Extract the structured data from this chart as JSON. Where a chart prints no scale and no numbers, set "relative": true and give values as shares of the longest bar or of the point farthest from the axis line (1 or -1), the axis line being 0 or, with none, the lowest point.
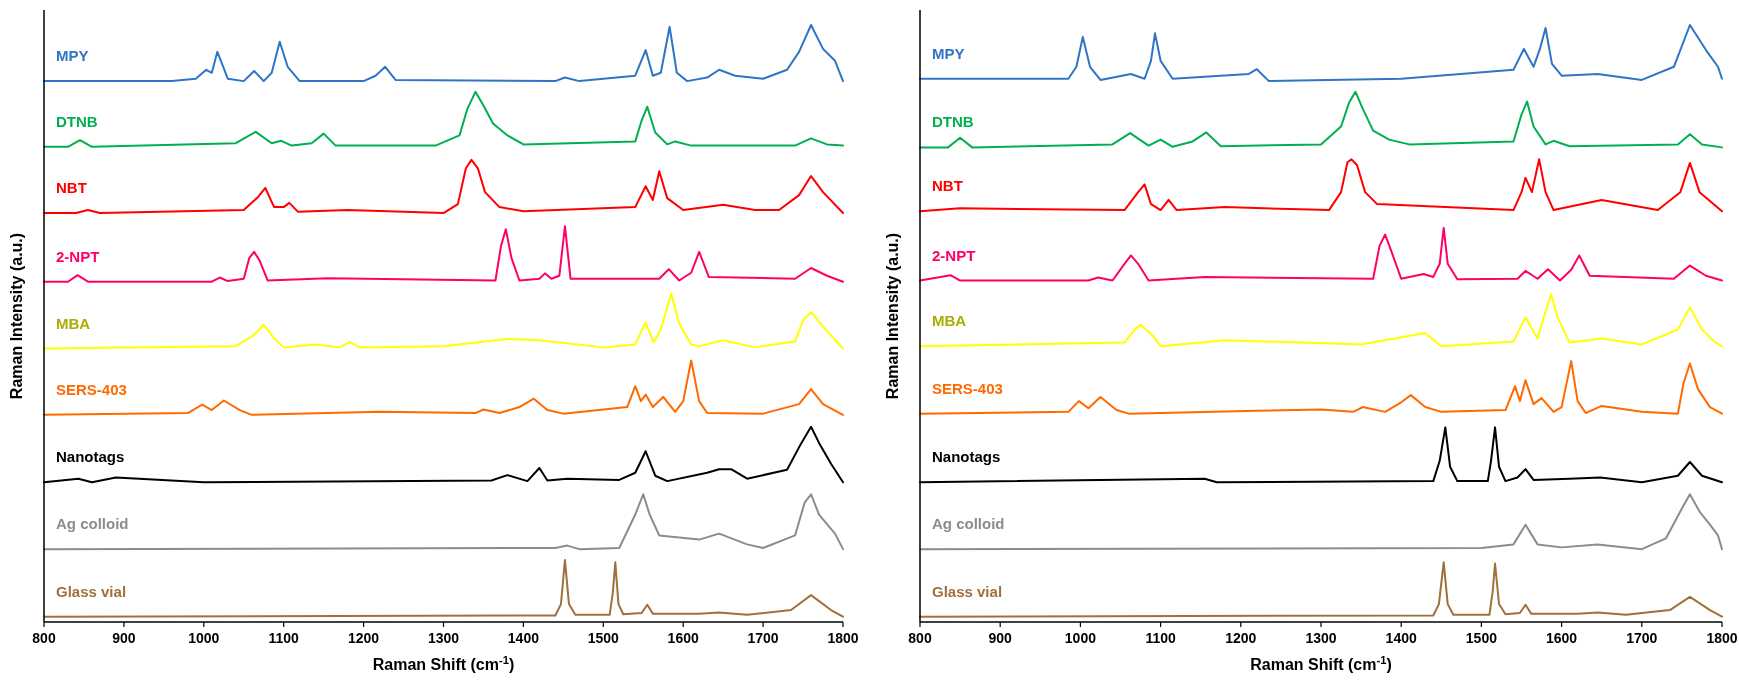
{
  "chart_data": [
    {
      "type": "line",
      "xlabel": "Raman Shift (cm$^{-1}$)",
      "ylabel": "Raman Intensity (a.u.)",
      "relative": true,
      "xlim": [
        800,
        1800
      ],
      "xticks": [
        800,
        900,
        1000,
        1100,
        1200,
        1300,
        1400,
        1500,
        1600,
        1700,
        1800
      ],
      "grid": false,
      "legend": false,
      "marker": "none",
      "line_style": "solid",
      "series": [
        {
          "name": "MPY",
          "color": "#2e75c6",
          "x": [
            800,
            960,
            990,
            1003,
            1010,
            1017,
            1030,
            1050,
            1063,
            1075,
            1085,
            1095,
            1105,
            1120,
            1200,
            1215,
            1227,
            1240,
            1440,
            1452,
            1470,
            1540,
            1553,
            1562,
            1572,
            1583,
            1592,
            1605,
            1630,
            1645,
            1665,
            1700,
            1730,
            1745,
            1760,
            1775,
            1790,
            1800
          ],
          "values": [
            0.906,
            0.906,
            0.91,
            0.925,
            0.92,
            0.955,
            0.91,
            0.906,
            0.923,
            0.906,
            0.92,
            0.972,
            0.93,
            0.906,
            0.906,
            0.915,
            0.93,
            0.908,
            0.906,
            0.912,
            0.906,
            0.915,
            0.958,
            0.915,
            0.92,
            0.997,
            0.92,
            0.906,
            0.912,
            0.925,
            0.915,
            0.91,
            0.925,
            0.955,
            1.0,
            0.96,
            0.94,
            0.906
          ]
        },
        {
          "name": "DTNB",
          "color": "#00b050",
          "x": [
            800,
            830,
            845,
            860,
            1040,
            1065,
            1085,
            1097,
            1110,
            1135,
            1150,
            1165,
            1290,
            1320,
            1330,
            1340,
            1350,
            1362,
            1380,
            1400,
            1540,
            1548,
            1555,
            1565,
            1580,
            1590,
            1610,
            1740,
            1760,
            1780,
            1800
          ],
          "values": [
            0.796,
            0.796,
            0.807,
            0.796,
            0.802,
            0.821,
            0.802,
            0.806,
            0.798,
            0.802,
            0.818,
            0.798,
            0.798,
            0.815,
            0.86,
            0.888,
            0.865,
            0.835,
            0.815,
            0.8,
            0.805,
            0.84,
            0.863,
            0.82,
            0.8,
            0.805,
            0.798,
            0.798,
            0.81,
            0.8,
            0.798
          ]
        },
        {
          "name": "NBT",
          "color": "#ff0000",
          "x": [
            800,
            840,
            855,
            870,
            1050,
            1068,
            1077,
            1088,
            1100,
            1107,
            1118,
            1180,
            1300,
            1318,
            1328,
            1335,
            1343,
            1352,
            1370,
            1400,
            1540,
            1553,
            1562,
            1570,
            1580,
            1600,
            1650,
            1690,
            1720,
            1745,
            1760,
            1775,
            1800
          ],
          "values": [
            0.685,
            0.685,
            0.69,
            0.685,
            0.69,
            0.712,
            0.727,
            0.695,
            0.695,
            0.702,
            0.687,
            0.69,
            0.685,
            0.7,
            0.76,
            0.774,
            0.76,
            0.72,
            0.695,
            0.688,
            0.695,
            0.73,
            0.707,
            0.755,
            0.71,
            0.69,
            0.699,
            0.69,
            0.69,
            0.715,
            0.747,
            0.72,
            0.685
          ]
        },
        {
          "name": "2-NPT",
          "color": "#ff0066",
          "x": [
            800,
            830,
            842,
            855,
            1010,
            1020,
            1030,
            1050,
            1057,
            1063,
            1070,
            1080,
            1155,
            1365,
            1372,
            1378,
            1385,
            1395,
            1420,
            1427,
            1435,
            1445,
            1452,
            1459,
            1570,
            1582,
            1595,
            1610,
            1620,
            1632,
            1740,
            1760,
            1780,
            1800
          ],
          "values": [
            0.57,
            0.57,
            0.581,
            0.57,
            0.57,
            0.577,
            0.571,
            0.575,
            0.61,
            0.62,
            0.605,
            0.572,
            0.576,
            0.572,
            0.63,
            0.658,
            0.61,
            0.572,
            0.575,
            0.584,
            0.575,
            0.58,
            0.663,
            0.575,
            0.575,
            0.591,
            0.572,
            0.585,
            0.62,
            0.578,
            0.575,
            0.593,
            0.58,
            0.57
          ]
        },
        {
          "name": "MBA",
          "color": "#ffff00",
          "x": [
            800,
            1040,
            1062,
            1075,
            1088,
            1100,
            1140,
            1170,
            1183,
            1195,
            1300,
            1380,
            1420,
            1500,
            1540,
            1553,
            1563,
            1572,
            1585,
            1595,
            1610,
            1620,
            1650,
            1690,
            1740,
            1750,
            1760,
            1775,
            1800
          ],
          "values": [
            0.458,
            0.462,
            0.48,
            0.498,
            0.475,
            0.46,
            0.465,
            0.46,
            0.469,
            0.46,
            0.462,
            0.474,
            0.472,
            0.46,
            0.465,
            0.502,
            0.468,
            0.49,
            0.55,
            0.5,
            0.465,
            0.462,
            0.472,
            0.46,
            0.47,
            0.505,
            0.519,
            0.495,
            0.458
          ]
        },
        {
          "name": "SERS-403",
          "color": "#ff6a00",
          "x": [
            800,
            980,
            998,
            1010,
            1025,
            1045,
            1060,
            1220,
            1340,
            1350,
            1370,
            1395,
            1413,
            1430,
            1450,
            1530,
            1540,
            1547,
            1553,
            1562,
            1575,
            1590,
            1600,
            1610,
            1620,
            1630,
            1700,
            1745,
            1760,
            1775,
            1800
          ],
          "values": [
            0.347,
            0.35,
            0.364,
            0.355,
            0.371,
            0.355,
            0.347,
            0.352,
            0.35,
            0.356,
            0.35,
            0.36,
            0.374,
            0.355,
            0.349,
            0.36,
            0.395,
            0.37,
            0.381,
            0.36,
            0.377,
            0.352,
            0.37,
            0.438,
            0.37,
            0.35,
            0.349,
            0.365,
            0.39,
            0.365,
            0.347
          ]
        },
        {
          "name": "Nanotags",
          "color": "#000000",
          "x": [
            800,
            843,
            860,
            890,
            1000,
            1360,
            1380,
            1405,
            1420,
            1430,
            1455,
            1520,
            1540,
            1553,
            1565,
            1580,
            1630,
            1645,
            1660,
            1680,
            1730,
            1748,
            1760,
            1770,
            1785,
            1800
          ],
          "values": [
            0.234,
            0.24,
            0.234,
            0.242,
            0.234,
            0.237,
            0.246,
            0.236,
            0.258,
            0.237,
            0.24,
            0.238,
            0.25,
            0.286,
            0.245,
            0.236,
            0.25,
            0.256,
            0.256,
            0.24,
            0.255,
            0.3,
            0.327,
            0.3,
            0.265,
            0.234
          ]
        },
        {
          "name": "Ag colloid",
          "color": "#8c8c8c",
          "x": [
            800,
            1440,
            1455,
            1470,
            1520,
            1540,
            1550,
            1558,
            1570,
            1620,
            1645,
            1680,
            1700,
            1740,
            1752,
            1760,
            1770,
            1790,
            1800
          ],
          "values": [
            0.122,
            0.124,
            0.128,
            0.122,
            0.124,
            0.18,
            0.214,
            0.18,
            0.145,
            0.138,
            0.148,
            0.13,
            0.124,
            0.145,
            0.2,
            0.214,
            0.18,
            0.148,
            0.122
          ]
        },
        {
          "name": "Glass vial",
          "color": "#a0703c",
          "x": [
            800,
            1440,
            1447,
            1452,
            1457,
            1465,
            1508,
            1512,
            1515,
            1519,
            1525,
            1548,
            1555,
            1562,
            1620,
            1645,
            1680,
            1735,
            1760,
            1785,
            1800
          ],
          "values": [
            0.009,
            0.011,
            0.03,
            0.104,
            0.03,
            0.012,
            0.012,
            0.05,
            0.1,
            0.03,
            0.013,
            0.015,
            0.029,
            0.014,
            0.014,
            0.016,
            0.012,
            0.02,
            0.045,
            0.02,
            0.009
          ]
        }
      ]
    },
    {
      "type": "line",
      "xlabel": "Raman Shift (cm$^{-1}$)",
      "ylabel": "Raman Intensity (a.u.)",
      "relative": true,
      "xlim": [
        800,
        1800
      ],
      "xticks": [
        800,
        900,
        1000,
        1100,
        1200,
        1300,
        1400,
        1500,
        1600,
        1700,
        1800
      ],
      "grid": false,
      "legend": false,
      "marker": "none",
      "line_style": "solid",
      "series": [
        {
          "name": "MPY",
          "color": "#2e75c6",
          "x": [
            800,
            985,
            995,
            1003,
            1012,
            1025,
            1063,
            1080,
            1088,
            1093,
            1100,
            1115,
            1210,
            1220,
            1235,
            1400,
            1540,
            1553,
            1565,
            1573,
            1580,
            1588,
            1600,
            1645,
            1700,
            1740,
            1760,
            1780,
            1795,
            1800
          ],
          "values": [
            0.91,
            0.91,
            0.93,
            0.98,
            0.93,
            0.908,
            0.918,
            0.91,
            0.94,
            0.986,
            0.94,
            0.91,
            0.918,
            0.926,
            0.906,
            0.91,
            0.925,
            0.96,
            0.93,
            0.96,
            0.995,
            0.935,
            0.915,
            0.918,
            0.908,
            0.93,
            1.0,
            0.958,
            0.93,
            0.91
          ]
        },
        {
          "name": "DTNB",
          "color": "#00b050",
          "x": [
            800,
            835,
            850,
            865,
            1040,
            1062,
            1085,
            1100,
            1115,
            1140,
            1157,
            1175,
            1300,
            1325,
            1335,
            1343,
            1352,
            1365,
            1385,
            1410,
            1540,
            1550,
            1557,
            1565,
            1580,
            1590,
            1610,
            1745,
            1760,
            1775,
            1800
          ],
          "values": [
            0.795,
            0.795,
            0.811,
            0.795,
            0.8,
            0.819,
            0.798,
            0.808,
            0.796,
            0.805,
            0.82,
            0.797,
            0.8,
            0.83,
            0.87,
            0.888,
            0.86,
            0.823,
            0.808,
            0.8,
            0.805,
            0.85,
            0.872,
            0.83,
            0.8,
            0.806,
            0.797,
            0.8,
            0.817,
            0.8,
            0.795
          ]
        },
        {
          "name": "NBT",
          "color": "#ff0000",
          "x": [
            800,
            850,
            1055,
            1072,
            1080,
            1088,
            1100,
            1110,
            1120,
            1180,
            1310,
            1325,
            1333,
            1338,
            1345,
            1355,
            1370,
            1540,
            1550,
            1555,
            1563,
            1572,
            1580,
            1590,
            1650,
            1720,
            1748,
            1760,
            1772,
            1800
          ],
          "values": [
            0.688,
            0.693,
            0.69,
            0.72,
            0.733,
            0.7,
            0.69,
            0.707,
            0.69,
            0.695,
            0.69,
            0.72,
            0.77,
            0.775,
            0.765,
            0.72,
            0.7,
            0.69,
            0.72,
            0.744,
            0.72,
            0.775,
            0.72,
            0.69,
            0.707,
            0.69,
            0.72,
            0.769,
            0.72,
            0.688
          ]
        },
        {
          "name": "2-NPT",
          "color": "#ff0066",
          "x": [
            800,
            838,
            850,
            1010,
            1022,
            1040,
            1055,
            1063,
            1072,
            1085,
            1155,
            1365,
            1373,
            1380,
            1388,
            1400,
            1428,
            1440,
            1448,
            1453,
            1458,
            1470,
            1545,
            1555,
            1570,
            1583,
            1598,
            1612,
            1622,
            1635,
            1740,
            1760,
            1780,
            1800
          ],
          "values": [
            0.572,
            0.581,
            0.572,
            0.572,
            0.577,
            0.572,
            0.6,
            0.614,
            0.6,
            0.572,
            0.578,
            0.575,
            0.63,
            0.649,
            0.62,
            0.575,
            0.583,
            0.578,
            0.6,
            0.66,
            0.6,
            0.574,
            0.575,
            0.588,
            0.575,
            0.591,
            0.572,
            0.59,
            0.614,
            0.58,
            0.575,
            0.597,
            0.58,
            0.572
          ]
        },
        {
          "name": "MBA",
          "color": "#ffff00",
          "x": [
            800,
            1055,
            1068,
            1075,
            1090,
            1100,
            1180,
            1350,
            1430,
            1450,
            1540,
            1555,
            1570,
            1580,
            1587,
            1595,
            1610,
            1650,
            1700,
            1745,
            1760,
            1775,
            1790,
            1800
          ],
          "values": [
            0.462,
            0.468,
            0.49,
            0.498,
            0.48,
            0.462,
            0.472,
            0.465,
            0.484,
            0.462,
            0.47,
            0.51,
            0.475,
            0.52,
            0.549,
            0.51,
            0.468,
            0.475,
            0.465,
            0.49,
            0.527,
            0.49,
            0.47,
            0.462
          ]
        },
        {
          "name": "SERS-403",
          "color": "#ff6a00",
          "x": [
            800,
            985,
            998,
            1010,
            1025,
            1045,
            1060,
            1220,
            1300,
            1340,
            1352,
            1380,
            1400,
            1412,
            1430,
            1450,
            1530,
            1542,
            1548,
            1555,
            1565,
            1575,
            1590,
            1600,
            1612,
            1620,
            1630,
            1650,
            1700,
            1745,
            1752,
            1760,
            1770,
            1785,
            1800
          ],
          "values": [
            0.349,
            0.352,
            0.37,
            0.358,
            0.377,
            0.355,
            0.349,
            0.354,
            0.356,
            0.352,
            0.36,
            0.352,
            0.368,
            0.38,
            0.36,
            0.352,
            0.355,
            0.395,
            0.37,
            0.405,
            0.365,
            0.375,
            0.352,
            0.36,
            0.437,
            0.37,
            0.35,
            0.362,
            0.352,
            0.349,
            0.4,
            0.433,
            0.39,
            0.36,
            0.349
          ]
        },
        {
          "name": "Nanotags",
          "color": "#000000",
          "x": [
            800,
            1155,
            1170,
            1440,
            1448,
            1455,
            1461,
            1470,
            1508,
            1512,
            1517,
            1522,
            1530,
            1545,
            1555,
            1565,
            1610,
            1648,
            1700,
            1745,
            1760,
            1775,
            1800
          ],
          "values": [
            0.234,
            0.24,
            0.234,
            0.236,
            0.27,
            0.326,
            0.26,
            0.236,
            0.236,
            0.27,
            0.326,
            0.26,
            0.236,
            0.242,
            0.256,
            0.238,
            0.24,
            0.242,
            0.234,
            0.245,
            0.268,
            0.245,
            0.234
          ]
        },
        {
          "name": "Ag colloid",
          "color": "#8c8c8c",
          "x": [
            800,
            1500,
            1540,
            1555,
            1570,
            1600,
            1645,
            1700,
            1730,
            1750,
            1760,
            1772,
            1785,
            1795,
            1800
          ],
          "values": [
            0.122,
            0.124,
            0.13,
            0.163,
            0.13,
            0.125,
            0.13,
            0.122,
            0.14,
            0.19,
            0.214,
            0.185,
            0.163,
            0.145,
            0.122
          ]
        },
        {
          "name": "Glass vial",
          "color": "#a0703c",
          "x": [
            800,
            1440,
            1447,
            1453,
            1458,
            1465,
            1510,
            1514,
            1517,
            1522,
            1530,
            1548,
            1555,
            1562,
            1620,
            1645,
            1680,
            1735,
            1760,
            1785,
            1800
          ],
          "values": [
            0.009,
            0.011,
            0.03,
            0.1,
            0.03,
            0.012,
            0.012,
            0.05,
            0.098,
            0.03,
            0.013,
            0.015,
            0.029,
            0.014,
            0.014,
            0.016,
            0.012,
            0.02,
            0.042,
            0.02,
            0.009
          ]
        }
      ]
    }
  ]
}
